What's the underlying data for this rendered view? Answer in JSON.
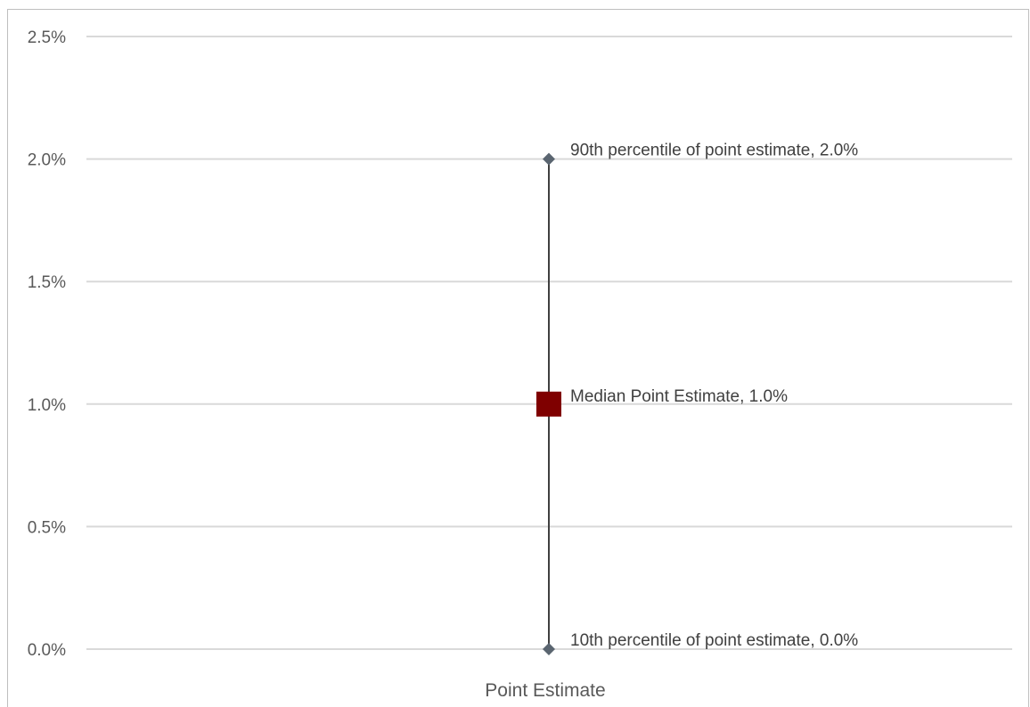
{
  "chart_data": {
    "type": "scatter",
    "title": "",
    "xlabel": "",
    "ylabel": "",
    "categories": [
      "Point Estimate"
    ],
    "ylim": [
      0.0,
      2.5
    ],
    "yticks": [
      0.0,
      0.5,
      1.0,
      1.5,
      2.0,
      2.5
    ],
    "ytick_labels": [
      "0.0%",
      "0.5%",
      "1.0%",
      "1.5%",
      "2.0%",
      "2.5%"
    ],
    "grid": true,
    "legend": "none",
    "error_bar": {
      "low": 0.0,
      "high": 2.0,
      "color": "#404040"
    },
    "points": [
      {
        "category": "Point Estimate",
        "value": 2.0,
        "marker": "diamond",
        "color": "#5a6570",
        "label": "90th percentile of point estimate, 2.0%"
      },
      {
        "category": "Point Estimate",
        "value": 1.0,
        "marker": "square",
        "color": "#7f0000",
        "label": "Median Point Estimate, 1.0%"
      },
      {
        "category": "Point Estimate",
        "value": 0.0,
        "marker": "diamond",
        "color": "#5a6570",
        "label": "10th percentile of point estimate, 0.0%"
      }
    ],
    "colors": {
      "grid": "#d9d9d9",
      "axis_text": "#595959",
      "label_text": "#404040"
    }
  }
}
